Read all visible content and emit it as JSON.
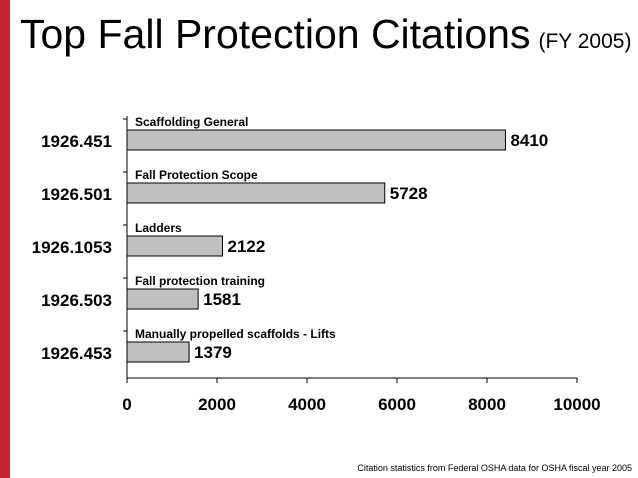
{
  "slide": {
    "title": "Top Fall Protection Citations",
    "title_suffix": "(FY 2005)",
    "footnote": "Citation statistics from Federal OSHA data for OSHA fiscal year 2005",
    "accent_color": "#c1272d"
  },
  "chart_data": {
    "type": "bar",
    "orientation": "horizontal",
    "categories": [
      "1926.451",
      "1926.501",
      "1926.1053",
      "1926.503",
      "1926.453"
    ],
    "descriptions": [
      "Scaffolding General",
      "Fall Protection Scope",
      "Ladders",
      "Fall protection training",
      "Manually propelled scaffolds - Lifts"
    ],
    "values": [
      8410,
      5728,
      2122,
      1581,
      1379
    ],
    "xlim": [
      0,
      10000
    ],
    "xticks": [
      0,
      2000,
      4000,
      6000,
      8000,
      10000
    ],
    "grid": false,
    "bar_color": "#c0c0c0",
    "bar_edge_color": "#000000"
  }
}
